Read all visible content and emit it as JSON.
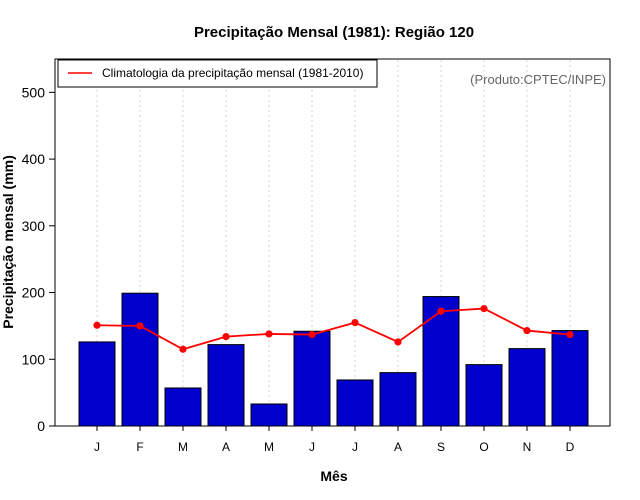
{
  "chart_data": {
    "type": "bar",
    "title": "Precipitação Mensal (1981): Região 120",
    "xlabel": "Mês",
    "ylabel": "Precipitação mensal (mm)",
    "ylim": [
      0,
      550
    ],
    "yticks": [
      0,
      100,
      200,
      300,
      400,
      500
    ],
    "categories": [
      "J",
      "F",
      "M",
      "A",
      "M",
      "J",
      "J",
      "A",
      "S",
      "O",
      "N",
      "D"
    ],
    "series": [
      {
        "name": "Precipitação mensal (1981)",
        "type": "bar",
        "color": "#0000CD",
        "values": [
          126,
          199,
          57,
          122,
          33,
          142,
          69,
          80,
          194,
          92,
          116,
          143
        ]
      },
      {
        "name": "Climatologia da precipitação mensal (1981-2010)",
        "type": "line",
        "color": "#FF0000",
        "values": [
          151,
          150,
          115,
          134,
          138,
          137,
          155,
          126,
          172,
          176,
          143,
          137
        ]
      }
    ],
    "legend": {
      "position": "top-left",
      "entries": [
        "Climatologia da precipitação mensal (1981-2010)"
      ]
    },
    "annotation": "(Produto:CPTEC/INPE)",
    "grid": "vertical-dotted"
  }
}
